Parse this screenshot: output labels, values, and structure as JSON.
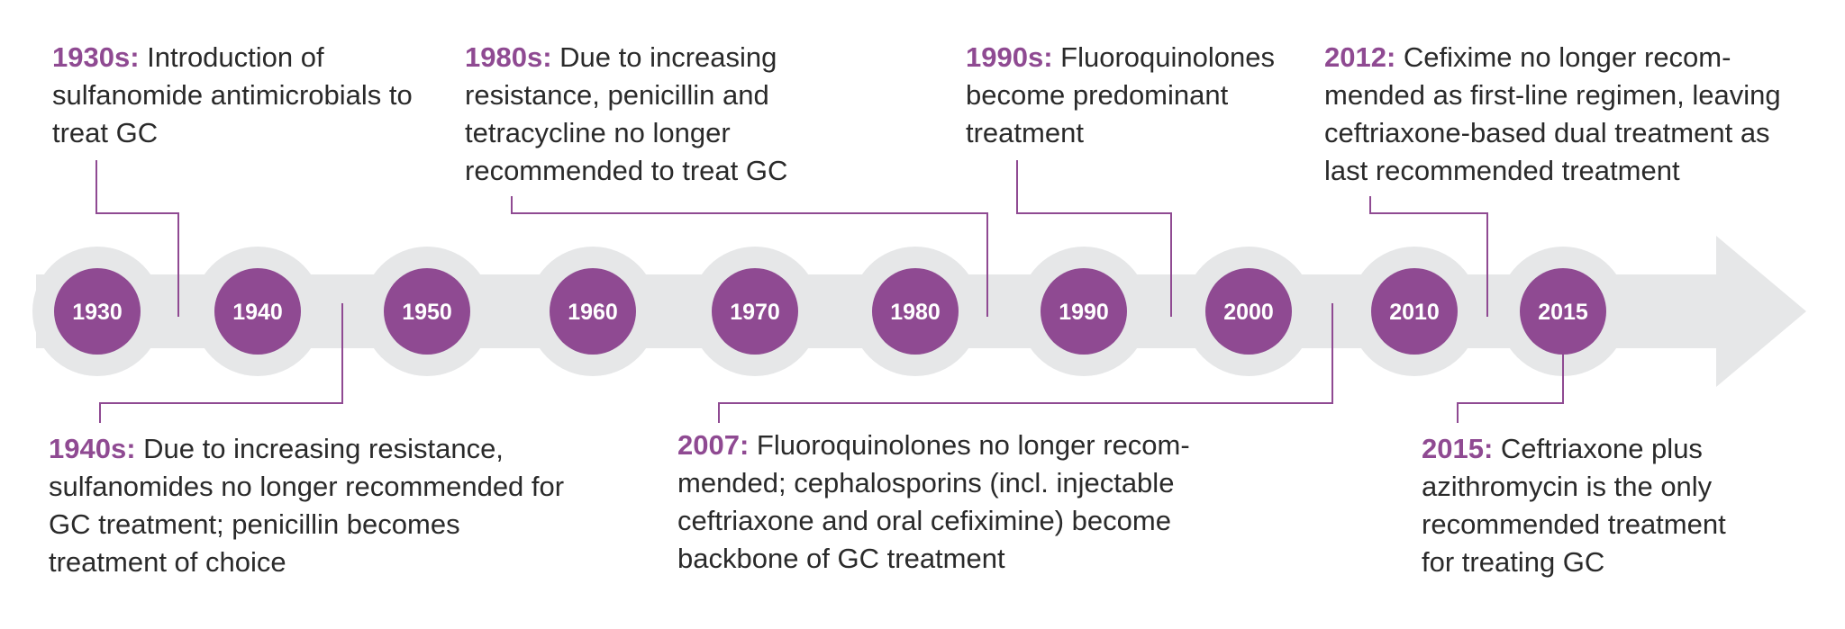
{
  "colors": {
    "accent": "#8f4a92",
    "track": "#e6e7e8",
    "halo": "#e6e7e8",
    "connector": "#8f4a92",
    "text": "#2a2a2a"
  },
  "years": [
    "1930",
    "1940",
    "1950",
    "1960",
    "1970",
    "1980",
    "1990",
    "2000",
    "2010",
    "2015"
  ],
  "events": [
    {
      "key": "1930s:",
      "text": "Introduction of sulfanomide antimicrobials to treat GC"
    },
    {
      "key": "1980s:",
      "text": "Due to increasing resistance, penicillin and tetracycline no longer recommended to treat GC"
    },
    {
      "key": "1990s:",
      "text": "Fluoroquinolones become predominant treatment"
    },
    {
      "key": "2012:",
      "text": "Cefixime no longer recom-mended as first-line regimen, leaving ceftriaxone-based dual treatment as last recommended treatment"
    },
    {
      "key": "1940s:",
      "text": "Due to increasing resistance, sulfanomides no longer recommended for GC treatment; penicillin becomes treatment of choice"
    },
    {
      "key": "2007:",
      "text": "Fluoroquinolones no longer recom-mended; cephalosporins (incl. injectable ceftriaxone and oral cefiximine) become backbone of GC treatment"
    },
    {
      "key": "2015:",
      "text": "Ceftriaxone plus azithromycin is the only recommended treatment for treating GC"
    }
  ]
}
